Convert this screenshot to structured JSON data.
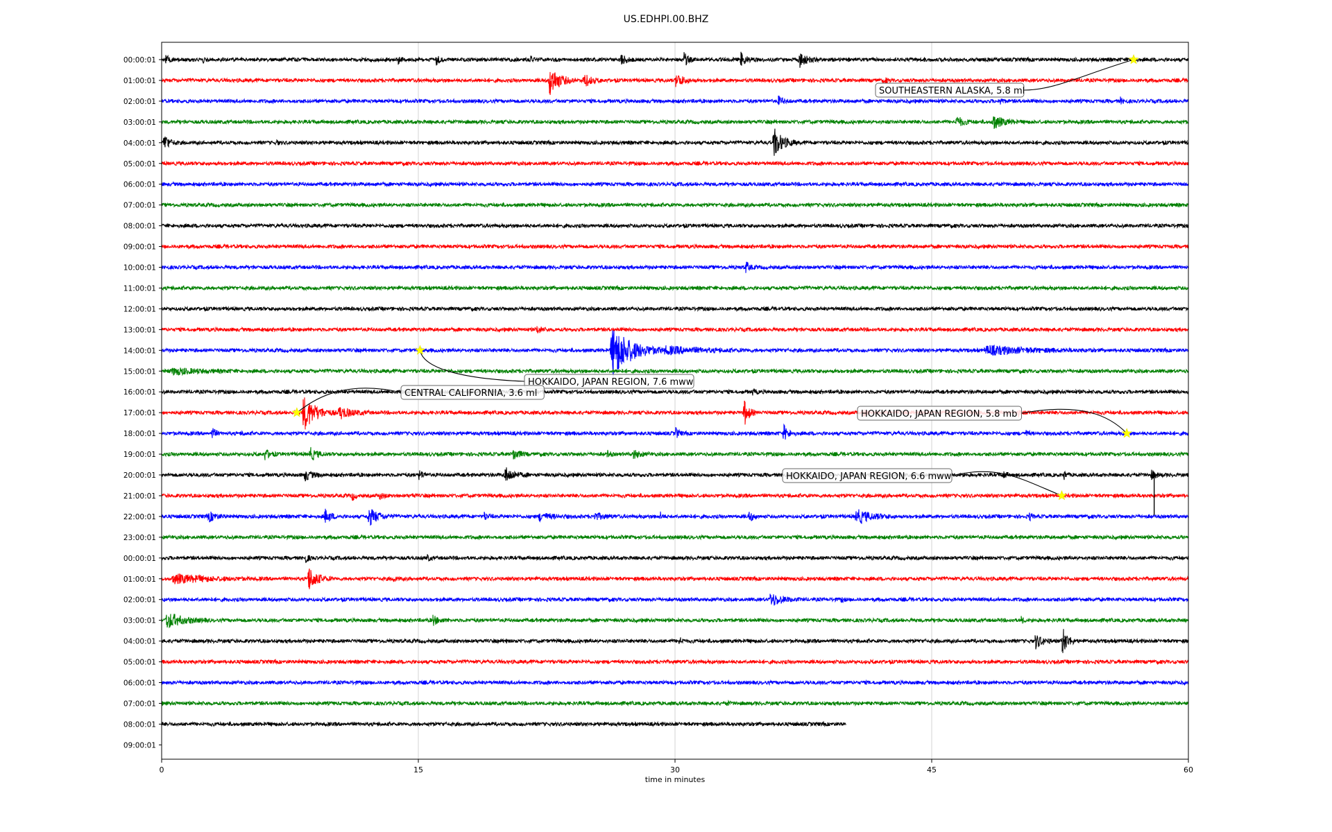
{
  "chart_data": {
    "type": "line",
    "title": "US.EDHPI.00.BHZ",
    "xlabel": "time in minutes",
    "ylabel": "",
    "xlim": [
      0,
      60
    ],
    "x_ticks": [
      "0",
      "15",
      "30",
      "45",
      "60"
    ],
    "x_tick_values": [
      0,
      15,
      30,
      45,
      60
    ],
    "grid": "vertical",
    "colors": [
      "#000000",
      "#ff0000",
      "#0000ff",
      "#008000"
    ],
    "row_labels": [
      "00:00:01",
      "01:00:01",
      "02:00:01",
      "03:00:01",
      "04:00:01",
      "05:00:01",
      "06:00:01",
      "07:00:01",
      "08:00:01",
      "09:00:01",
      "10:00:01",
      "11:00:01",
      "12:00:01",
      "13:00:01",
      "14:00:01",
      "15:00:01",
      "16:00:01",
      "17:00:01",
      "18:00:01",
      "19:00:01",
      "20:00:01",
      "21:00:01",
      "22:00:01",
      "23:00:01",
      "00:00:01",
      "01:00:01",
      "02:00:01",
      "03:00:01",
      "04:00:01",
      "05:00:01",
      "06:00:01",
      "07:00:01",
      "08:00:01",
      "09:00:01"
    ],
    "last_trace_end_minute": 40,
    "bursts": [
      {
        "row": 0,
        "t": 0.2,
        "amp": 8,
        "dur": 0.6
      },
      {
        "row": 0,
        "t": 2.4,
        "amp": 7,
        "dur": 0.3
      },
      {
        "row": 0,
        "t": 13.8,
        "amp": 6,
        "dur": 0.4
      },
      {
        "row": 0,
        "t": 16,
        "amp": 9,
        "dur": 0.6
      },
      {
        "row": 0,
        "t": 21.5,
        "amp": 7,
        "dur": 0.5
      },
      {
        "row": 0,
        "t": 26.8,
        "amp": 10,
        "dur": 0.8
      },
      {
        "row": 0,
        "t": 30.5,
        "amp": 12,
        "dur": 0.6
      },
      {
        "row": 0,
        "t": 33.8,
        "amp": 11,
        "dur": 1
      },
      {
        "row": 0,
        "t": 37.2,
        "amp": 13,
        "dur": 1.2
      },
      {
        "row": 1,
        "t": 22.6,
        "amp": 26,
        "dur": 1.6
      },
      {
        "row": 1,
        "t": 24.6,
        "amp": 12,
        "dur": 1.2
      },
      {
        "row": 1,
        "t": 30,
        "amp": 12,
        "dur": 1.2
      },
      {
        "row": 1,
        "t": 42.2,
        "amp": 6,
        "dur": 0.4
      },
      {
        "row": 2,
        "t": 36,
        "amp": 7,
        "dur": 0.8
      },
      {
        "row": 2,
        "t": 49,
        "amp": 6,
        "dur": 0.4
      },
      {
        "row": 2,
        "t": 56,
        "amp": 5,
        "dur": 0.4
      },
      {
        "row": 3,
        "t": 46.4,
        "amp": 9,
        "dur": 1.2
      },
      {
        "row": 3,
        "t": 48.5,
        "amp": 13,
        "dur": 1.5
      },
      {
        "row": 4,
        "t": 0.1,
        "amp": 14,
        "dur": 0.9
      },
      {
        "row": 4,
        "t": 6.7,
        "amp": 5,
        "dur": 0.3
      },
      {
        "row": 4,
        "t": 35.7,
        "amp": 26,
        "dur": 1.4
      },
      {
        "row": 10,
        "t": 34.1,
        "amp": 10,
        "dur": 0.6
      },
      {
        "row": 13,
        "t": 21.9,
        "amp": 7,
        "dur": 0.7
      },
      {
        "row": 14,
        "t": 26.2,
        "amp": 44,
        "dur": 3.2
      },
      {
        "row": 14,
        "t": 29.2,
        "amp": 6,
        "dur": 6
      },
      {
        "row": 14,
        "t": 48,
        "amp": 7,
        "dur": 6.5
      },
      {
        "row": 15,
        "t": 0.5,
        "amp": 5,
        "dur": 4
      },
      {
        "row": 16,
        "t": 34.5,
        "amp": 5,
        "dur": 0.5
      },
      {
        "row": 17,
        "t": 8.2,
        "amp": 30,
        "dur": 2
      },
      {
        "row": 17,
        "t": 10.3,
        "amp": 10,
        "dur": 2
      },
      {
        "row": 17,
        "t": 34,
        "amp": 22,
        "dur": 0.8
      },
      {
        "row": 17,
        "t": 41,
        "amp": 6,
        "dur": 0.4
      },
      {
        "row": 17,
        "t": 50,
        "amp": 8,
        "dur": 0.4
      },
      {
        "row": 18,
        "t": 2.9,
        "amp": 12,
        "dur": 0.5
      },
      {
        "row": 18,
        "t": 4.7,
        "amp": 5,
        "dur": 0.3
      },
      {
        "row": 18,
        "t": 30,
        "amp": 10,
        "dur": 0.5
      },
      {
        "row": 18,
        "t": 36.3,
        "amp": 13,
        "dur": 0.8
      },
      {
        "row": 18,
        "t": 50.5,
        "amp": 5,
        "dur": 0.4
      },
      {
        "row": 19,
        "t": 6,
        "amp": 9,
        "dur": 0.8
      },
      {
        "row": 19,
        "t": 8.6,
        "amp": 11,
        "dur": 1.1
      },
      {
        "row": 19,
        "t": 20.5,
        "amp": 10,
        "dur": 1
      },
      {
        "row": 19,
        "t": 26,
        "amp": 6,
        "dur": 0.5
      },
      {
        "row": 19,
        "t": 27.5,
        "amp": 8,
        "dur": 1
      },
      {
        "row": 20,
        "t": 8.3,
        "amp": 9,
        "dur": 1.2
      },
      {
        "row": 20,
        "t": 15,
        "amp": 9,
        "dur": 0.6
      },
      {
        "row": 20,
        "t": 20,
        "amp": 12,
        "dur": 1.5
      },
      {
        "row": 20,
        "t": 36.8,
        "amp": 9,
        "dur": 0.6
      },
      {
        "row": 20,
        "t": 49.2,
        "amp": 7,
        "dur": 0.4
      },
      {
        "row": 20,
        "t": 52.7,
        "amp": 8,
        "dur": 0.4
      },
      {
        "row": 20,
        "t": 57.8,
        "amp": 7,
        "dur": 0.8
      },
      {
        "row": 21,
        "t": 11.1,
        "amp": 9,
        "dur": 0.4
      },
      {
        "row": 21,
        "t": 12.7,
        "amp": 6,
        "dur": 0.6
      },
      {
        "row": 21,
        "t": 14.6,
        "amp": 9,
        "dur": 0.3
      },
      {
        "row": 22,
        "t": 2.7,
        "amp": 8,
        "dur": 1.2
      },
      {
        "row": 22,
        "t": 9.5,
        "amp": 11,
        "dur": 1
      },
      {
        "row": 22,
        "t": 12,
        "amp": 15,
        "dur": 1.6
      },
      {
        "row": 22,
        "t": 18.8,
        "amp": 7,
        "dur": 0.6
      },
      {
        "row": 22,
        "t": 22,
        "amp": 6,
        "dur": 2
      },
      {
        "row": 22,
        "t": 25.2,
        "amp": 6,
        "dur": 1.5
      },
      {
        "row": 22,
        "t": 29.1,
        "amp": 7,
        "dur": 0.4
      },
      {
        "row": 22,
        "t": 34.3,
        "amp": 10,
        "dur": 0.6
      },
      {
        "row": 22,
        "t": 40.5,
        "amp": 11,
        "dur": 2.5
      },
      {
        "row": 22,
        "t": 50.7,
        "amp": 6,
        "dur": 0.4
      },
      {
        "row": 24,
        "t": 8.4,
        "amp": 7,
        "dur": 0.5
      },
      {
        "row": 24,
        "t": 15.5,
        "amp": 6,
        "dur": 0.4
      },
      {
        "row": 25,
        "t": 0.5,
        "amp": 7,
        "dur": 5.5
      },
      {
        "row": 25,
        "t": 8.5,
        "amp": 20,
        "dur": 1.5
      },
      {
        "row": 25,
        "t": 13.5,
        "amp": 5,
        "dur": 0.5
      },
      {
        "row": 26,
        "t": 35.5,
        "amp": 12,
        "dur": 1.8
      },
      {
        "row": 26,
        "t": 39.7,
        "amp": 5,
        "dur": 0.3
      },
      {
        "row": 27,
        "t": 0.2,
        "amp": 13,
        "dur": 2.6
      },
      {
        "row": 27,
        "t": 15.8,
        "amp": 8,
        "dur": 1
      },
      {
        "row": 27,
        "t": 50.2,
        "amp": 6,
        "dur": 0.4
      },
      {
        "row": 28,
        "t": 20,
        "amp": 5,
        "dur": 0.3
      },
      {
        "row": 28,
        "t": 30.2,
        "amp": 7,
        "dur": 0.5
      },
      {
        "row": 28,
        "t": 51,
        "amp": 12,
        "dur": 1.2
      },
      {
        "row": 28,
        "t": 52.6,
        "amp": 26,
        "dur": 0.8
      },
      {
        "row": 31,
        "t": 33,
        "amp": 4,
        "dur": 0.3
      }
    ],
    "spikes": [
      {
        "row": 20,
        "t": 58,
        "from": -4,
        "to": 58
      }
    ],
    "events": [
      {
        "label": "SOUTHEASTERN ALASKA, 5.8 ml",
        "row": 0,
        "t": 56.8
      },
      {
        "label": "HOKKAIDO, JAPAN REGION, 7.6 mww",
        "row": 14,
        "t": 15.1
      },
      {
        "label": "CENTRAL CALIFORNIA, 3.6 ml",
        "row": 17,
        "t": 7.9
      },
      {
        "label": "HOKKAIDO, JAPAN REGION, 5.8 mb",
        "row": 18,
        "t": 56.4
      },
      {
        "label": "HOKKAIDO, JAPAN REGION, 6.6 mww",
        "row": 21,
        "t": 52.6
      }
    ]
  }
}
